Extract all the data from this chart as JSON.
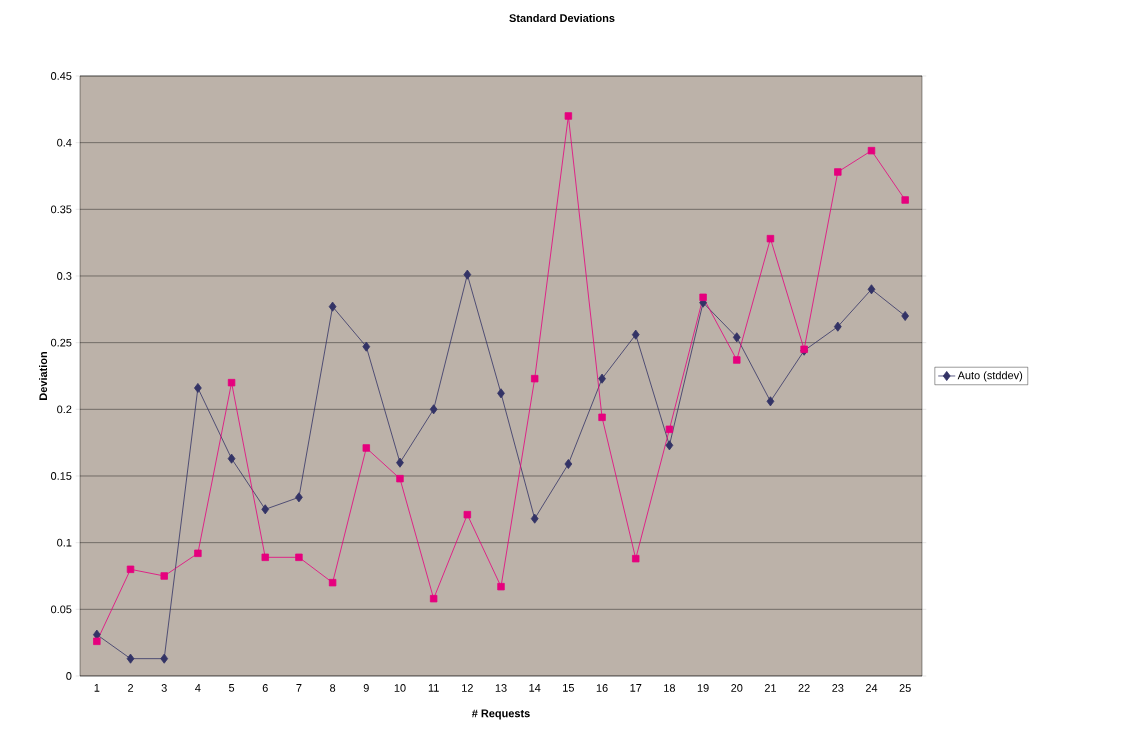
{
  "chart_data": {
    "type": "line",
    "title": "Standard Deviations",
    "xlabel": "# Requests",
    "ylabel": "Deviation",
    "categories": [
      "1",
      "2",
      "3",
      "4",
      "5",
      "6",
      "7",
      "8",
      "9",
      "10",
      "11",
      "12",
      "13",
      "14",
      "15",
      "16",
      "17",
      "18",
      "19",
      "20",
      "21",
      "22",
      "23",
      "24",
      "25"
    ],
    "series": [
      {
        "name": "Auto (stddev)",
        "color": "#333366",
        "marker": "diamond",
        "values": [
          0.031,
          0.013,
          0.013,
          0.216,
          0.163,
          0.125,
          0.134,
          0.277,
          0.247,
          0.16,
          0.2,
          0.301,
          0.212,
          0.118,
          0.159,
          0.223,
          0.256,
          0.173,
          0.28,
          0.254,
          0.206,
          0.244,
          0.262,
          0.29,
          0.27
        ]
      },
      {
        "color": "#e6007e",
        "marker": "square",
        "values": [
          0.026,
          0.08,
          0.075,
          0.092,
          0.22,
          0.089,
          0.089,
          0.07,
          0.171,
          0.148,
          0.058,
          0.121,
          0.067,
          0.223,
          0.42,
          0.194,
          0.088,
          0.185,
          0.284,
          0.237,
          0.328,
          0.245,
          0.378,
          0.394,
          0.357
        ]
      }
    ],
    "ylim": [
      0,
      0.45
    ],
    "yticks": [
      0,
      0.05,
      0.1,
      0.15,
      0.2,
      0.25,
      0.3,
      0.35,
      0.4,
      0.45
    ],
    "grid": "y",
    "legend": "right",
    "line_style": "solid"
  }
}
